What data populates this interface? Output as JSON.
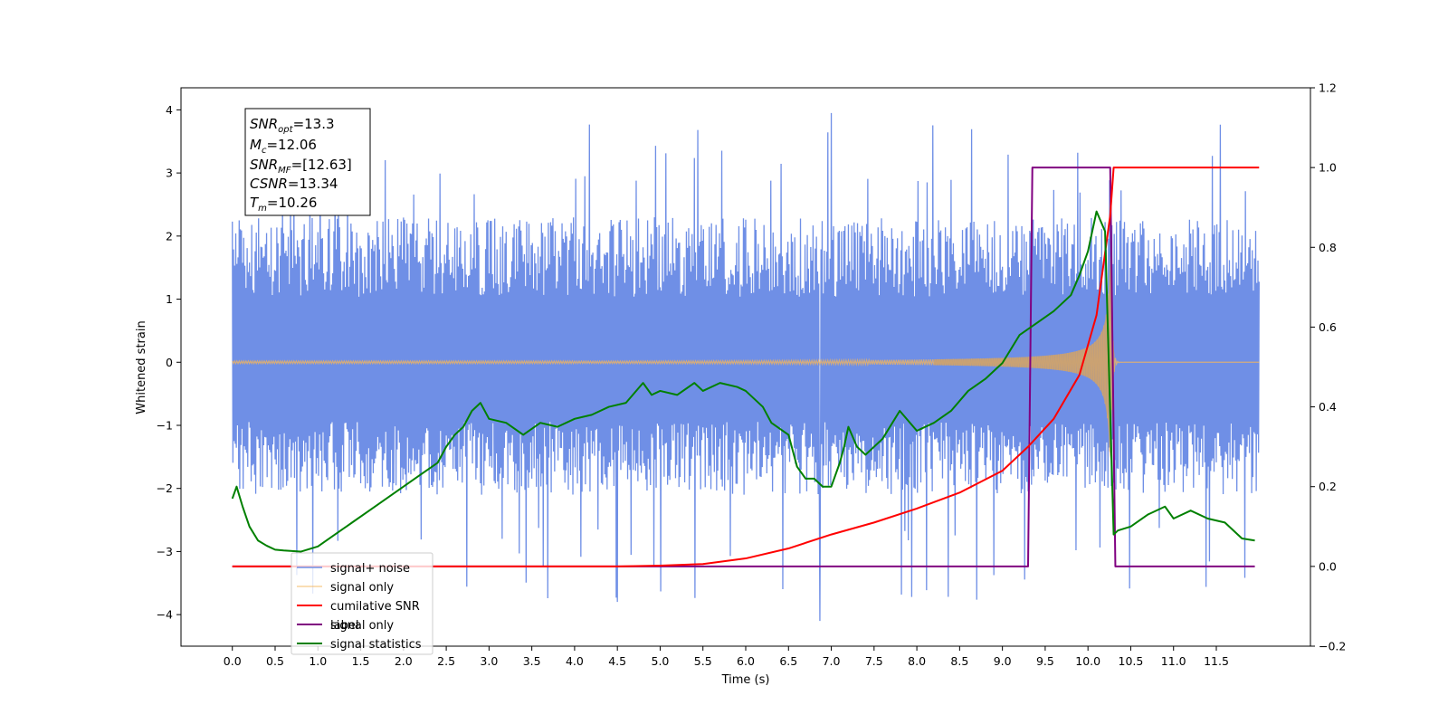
{
  "chart_data": {
    "type": "line",
    "xlabel": "Time (s)",
    "ylabel": "Whitened strain",
    "xlim": [
      -0.6,
      12.6
    ],
    "ylim": [
      -4.5,
      4.35
    ],
    "y2lim": [
      -0.2,
      1.2
    ],
    "x_ticks": [
      "0.0",
      "0.5",
      "1.0",
      "1.5",
      "2.0",
      "2.5",
      "3.0",
      "3.5",
      "4.0",
      "4.5",
      "5.0",
      "5.5",
      "6.0",
      "6.5",
      "7.0",
      "7.5",
      "8.0",
      "8.5",
      "9.0",
      "9.5",
      "10.0",
      "10.5",
      "11.0",
      "11.5"
    ],
    "y_ticks": [
      "4",
      "3",
      "2",
      "1",
      "0",
      "−1",
      "−2",
      "−3",
      "−4"
    ],
    "y2_ticks": [
      "1.2",
      "1.0",
      "0.8",
      "0.6",
      "0.4",
      "0.2",
      "0.0",
      "−0.2"
    ],
    "annotation": {
      "lines": [
        {
          "base": "SNR",
          "sub": "opt",
          "value": "=13.3"
        },
        {
          "base": "M",
          "sub": "c",
          "value": "=12.06"
        },
        {
          "base": "SNR",
          "sub": "MF",
          "value": "=[12.63]"
        },
        {
          "base": "CSNR",
          "sub": "",
          "value": "=13.34"
        },
        {
          "base": "T",
          "sub": "m",
          "value": "=10.26"
        }
      ]
    },
    "legend": {
      "placement": "lower-left",
      "entries": [
        "signal+ noise",
        "signal only",
        "cumilative SNR",
        "label",
        "signal statistics"
      ],
      "hidden_entry": "signal only"
    },
    "colors": {
      "noise": "#6f8fe6",
      "signal": "#f5b65a",
      "cumulative_snr": "#ff0000",
      "label": "#800080",
      "statistics": "#008000"
    },
    "series": [
      {
        "name": "signal+ noise",
        "axis": "left",
        "duration": [
          0.0,
          12.0
        ],
        "typical_envelope": [
          -2.1,
          2.3
        ],
        "max": 3.95,
        "min": -4.1
      },
      {
        "name": "signal only",
        "axis": "left",
        "chirp_start": 4.0,
        "merger": 10.26,
        "peak_amplitude": 2.5
      },
      {
        "name": "cumilative SNR",
        "axis": "right",
        "x": [
          0.0,
          4.5,
          5.0,
          5.5,
          6.0,
          6.5,
          7.0,
          7.5,
          8.0,
          8.5,
          9.0,
          9.3,
          9.6,
          9.9,
          10.1,
          10.26,
          10.3,
          12.0
        ],
        "y": [
          0.0,
          0.0,
          0.002,
          0.006,
          0.02,
          0.045,
          0.08,
          0.11,
          0.145,
          0.185,
          0.24,
          0.3,
          0.37,
          0.48,
          0.63,
          0.88,
          1.0,
          1.0
        ]
      },
      {
        "name": "label",
        "axis": "right",
        "x": [
          0.0,
          9.3,
          9.35,
          10.26,
          10.32,
          11.95
        ],
        "y": [
          0.0,
          0.0,
          1.0,
          1.0,
          0.0,
          0.0
        ]
      },
      {
        "name": "signal statistics",
        "axis": "right",
        "x": [
          0.0,
          0.05,
          0.12,
          0.2,
          0.3,
          0.4,
          0.5,
          0.6,
          0.8,
          1.0,
          1.2,
          1.4,
          1.6,
          1.8,
          2.0,
          2.2,
          2.4,
          2.5,
          2.6,
          2.7,
          2.8,
          2.9,
          3.0,
          3.2,
          3.4,
          3.6,
          3.8,
          4.0,
          4.2,
          4.4,
          4.6,
          4.8,
          4.9,
          5.0,
          5.2,
          5.4,
          5.5,
          5.7,
          5.9,
          6.0,
          6.2,
          6.3,
          6.5,
          6.6,
          6.7,
          6.8,
          6.9,
          7.0,
          7.1,
          7.15,
          7.2,
          7.3,
          7.4,
          7.6,
          7.8,
          8.0,
          8.2,
          8.4,
          8.6,
          8.8,
          9.0,
          9.2,
          9.4,
          9.6,
          9.8,
          9.9,
          10.0,
          10.1,
          10.2,
          10.3,
          10.35,
          10.5,
          10.7,
          10.9,
          11.0,
          11.2,
          11.4,
          11.6,
          11.8,
          11.95
        ],
        "y": [
          0.17,
          0.2,
          0.15,
          0.1,
          0.065,
          0.052,
          0.042,
          0.04,
          0.037,
          0.05,
          0.08,
          0.11,
          0.14,
          0.17,
          0.2,
          0.23,
          0.26,
          0.3,
          0.33,
          0.35,
          0.39,
          0.41,
          0.37,
          0.36,
          0.33,
          0.36,
          0.35,
          0.37,
          0.38,
          0.4,
          0.41,
          0.46,
          0.43,
          0.44,
          0.43,
          0.46,
          0.44,
          0.46,
          0.45,
          0.44,
          0.4,
          0.36,
          0.33,
          0.25,
          0.22,
          0.22,
          0.2,
          0.2,
          0.26,
          0.3,
          0.35,
          0.3,
          0.28,
          0.32,
          0.39,
          0.34,
          0.36,
          0.39,
          0.44,
          0.47,
          0.51,
          0.58,
          0.61,
          0.64,
          0.68,
          0.73,
          0.79,
          0.89,
          0.84,
          0.08,
          0.09,
          0.1,
          0.13,
          0.15,
          0.12,
          0.14,
          0.12,
          0.11,
          0.07,
          0.065
        ]
      }
    ]
  }
}
